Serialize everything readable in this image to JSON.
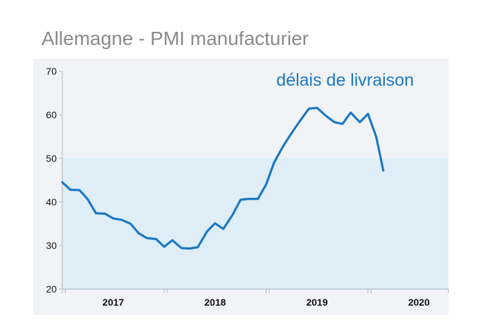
{
  "title": "Allemagne - PMI manufacturier",
  "chart_data": {
    "type": "line",
    "title": "Allemagne - PMI manufacturier",
    "xlabel": "",
    "ylabel": "",
    "ylim": [
      20,
      70
    ],
    "xlim": [
      2016.5,
      2020.29
    ],
    "yticks": [
      20,
      30,
      40,
      50,
      60,
      70
    ],
    "xtick_labels": [
      {
        "label": "2017",
        "x": 2017.0
      },
      {
        "label": "2018",
        "x": 2018.0
      },
      {
        "label": "2019",
        "x": 2019.0
      },
      {
        "label": "2020",
        "x": 2020.0
      }
    ],
    "threshold": 50,
    "threshold_band_color": "#deedf6",
    "background_color": "#f2f3f7",
    "line_color": "#1a78c2",
    "grid": false,
    "annotation": "délais de livraison",
    "series": [
      {
        "values": [
          [
            2016.5,
            44.5
          ],
          [
            2016.58,
            42.8
          ],
          [
            2016.67,
            42.7
          ],
          [
            2016.75,
            40.6
          ],
          [
            2016.83,
            37.4
          ],
          [
            2016.92,
            37.3
          ],
          [
            2017.0,
            36.2
          ],
          [
            2017.08,
            35.9
          ],
          [
            2017.17,
            35.0
          ],
          [
            2017.25,
            32.8
          ],
          [
            2017.33,
            31.7
          ],
          [
            2017.42,
            31.5
          ],
          [
            2017.5,
            29.7
          ],
          [
            2017.58,
            31.2
          ],
          [
            2017.67,
            29.4
          ],
          [
            2017.75,
            29.3
          ],
          [
            2017.83,
            29.6
          ],
          [
            2017.92,
            33.2
          ],
          [
            2018.0,
            35.1
          ],
          [
            2018.08,
            33.8
          ],
          [
            2018.17,
            37.0
          ],
          [
            2018.25,
            40.5
          ],
          [
            2018.33,
            40.7
          ],
          [
            2018.42,
            40.7
          ],
          [
            2018.5,
            44.0
          ],
          [
            2018.58,
            49.1
          ],
          [
            2018.67,
            52.9
          ],
          [
            2018.75,
            55.8
          ],
          [
            2018.83,
            58.5
          ],
          [
            2018.92,
            61.4
          ],
          [
            2019.0,
            61.6
          ],
          [
            2019.08,
            59.9
          ],
          [
            2019.17,
            58.3
          ],
          [
            2019.25,
            57.9
          ],
          [
            2019.33,
            60.5
          ],
          [
            2019.42,
            58.3
          ],
          [
            2019.5,
            60.2
          ],
          [
            2019.58,
            55.0
          ],
          [
            2019.65,
            47.2
          ]
        ]
      }
    ]
  }
}
